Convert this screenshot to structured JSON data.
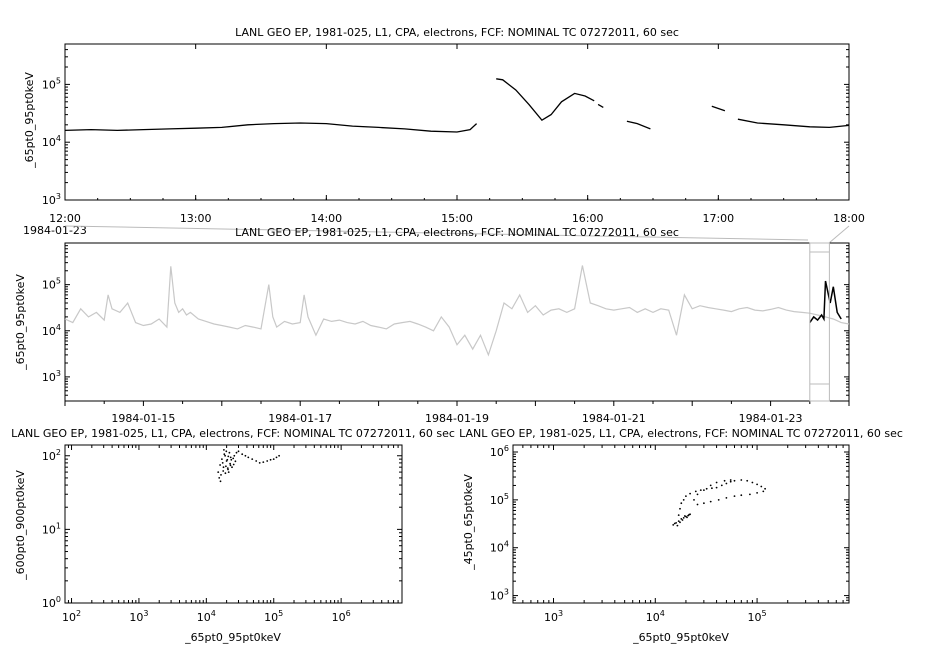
{
  "chart_data": [
    {
      "id": "top",
      "type": "line",
      "title": "LANL GEO EP, 1981-025, L1, CPA, electrons, FCF: NOMINAL TC 07272011, 60 sec",
      "xlabel": "",
      "ylabel": "_65pt0_95pt0keV",
      "yscale": "log",
      "ylim": [
        1000,
        500000
      ],
      "xlim": [
        "12:00",
        "18:00"
      ],
      "xticks": [
        "12:00",
        "13:00",
        "14:00",
        "15:00",
        "16:00",
        "17:00",
        "18:00"
      ],
      "yticks": [
        {
          "exp": 3
        },
        {
          "exp": 4
        },
        {
          "exp": 5
        }
      ],
      "extra_label": "1984-01-23",
      "series": [
        {
          "color": "#000000",
          "hours": [
            12.0,
            12.2,
            12.4,
            12.6,
            12.8,
            13.0,
            13.2,
            13.4,
            13.6,
            13.8,
            14.0,
            14.2,
            14.4,
            14.6,
            14.8,
            15.0,
            15.1,
            15.15
          ],
          "values": [
            16000,
            16500,
            16000,
            16500,
            17000,
            17500,
            18000,
            20000,
            21000,
            21500,
            21000,
            19000,
            18000,
            17000,
            15500,
            15000,
            16500,
            21000
          ]
        },
        {
          "color": "#000000",
          "hours": [
            15.3,
            15.35,
            15.45,
            15.55,
            15.65,
            15.72,
            15.8,
            15.9,
            15.98,
            16.05
          ],
          "values": [
            125000,
            120000,
            80000,
            45000,
            24000,
            30000,
            50000,
            70000,
            63000,
            52000
          ]
        },
        {
          "color": "#000000",
          "hours": [
            16.08,
            16.12
          ],
          "values": [
            45000,
            40000
          ]
        },
        {
          "color": "#000000",
          "hours": [
            16.3,
            16.38,
            16.48
          ],
          "values": [
            23000,
            21000,
            17000
          ]
        },
        {
          "color": "#000000",
          "hours": [
            16.95,
            17.05
          ],
          "values": [
            42000,
            35000
          ]
        },
        {
          "color": "#000000",
          "hours": [
            17.15,
            17.3,
            17.5,
            17.7,
            17.85,
            18.0
          ],
          "values": [
            25000,
            21500,
            20000,
            18500,
            18000,
            19500
          ]
        }
      ]
    },
    {
      "id": "middle",
      "type": "line",
      "title": "LANL GEO EP, 1981-025, L1, CPA, electrons, FCF: NOMINAL TC 07272011, 60 sec",
      "xlabel": "",
      "ylabel": "_65pt0_95pt0keV",
      "yscale": "log",
      "ylim": [
        300,
        800000
      ],
      "xlim_days": [
        14.0,
        24.0
      ],
      "xticks": [
        {
          "day": 15,
          "label": "1984-01-15"
        },
        {
          "day": 17,
          "label": "1984-01-17"
        },
        {
          "day": 19,
          "label": "1984-01-19"
        },
        {
          "day": 21,
          "label": "1984-01-21"
        },
        {
          "day": 23,
          "label": "1984-01-23"
        }
      ],
      "yticks": [
        {
          "exp": 3
        },
        {
          "exp": 4
        },
        {
          "exp": 5
        }
      ],
      "series": [
        {
          "color": "#c8c8c8",
          "days": [
            14.0,
            14.1,
            14.2,
            14.3,
            14.4,
            14.5,
            14.55,
            14.6,
            14.7,
            14.8,
            14.9,
            15.0,
            15.1,
            15.2,
            15.3,
            15.35,
            15.4,
            15.45,
            15.5,
            15.55,
            15.6,
            15.7,
            15.8,
            15.9,
            16.0,
            16.1,
            16.2,
            16.3,
            16.4,
            16.5,
            16.6,
            16.65,
            16.7,
            16.8,
            16.9,
            17.0,
            17.05,
            17.1,
            17.2,
            17.3,
            17.4,
            17.5,
            17.6,
            17.7,
            17.8,
            17.9,
            18.0,
            18.1,
            18.2,
            18.3,
            18.4,
            18.5,
            18.6,
            18.7,
            18.8,
            18.9,
            19.0,
            19.1,
            19.2,
            19.3,
            19.4,
            19.5,
            19.6,
            19.7,
            19.8,
            19.9,
            20.0,
            20.1,
            20.2,
            20.3,
            20.4,
            20.5,
            20.6,
            20.7,
            20.8,
            20.9,
            21.0,
            21.1,
            21.2,
            21.3,
            21.4,
            21.5,
            21.6,
            21.7,
            21.8,
            21.9,
            22.0,
            22.1,
            22.2,
            22.3,
            22.4,
            22.5,
            22.6,
            22.7,
            22.8,
            22.9,
            23.0,
            23.1,
            23.2,
            23.3,
            23.4,
            23.5,
            23.6,
            23.7,
            23.8,
            23.9,
            24.0
          ],
          "values": [
            18000,
            15000,
            30000,
            20000,
            25000,
            17000,
            60000,
            30000,
            25000,
            40000,
            15000,
            13000,
            14000,
            18000,
            12000,
            250000,
            40000,
            25000,
            30000,
            22000,
            25000,
            18000,
            16000,
            14000,
            13000,
            12000,
            11000,
            13000,
            12000,
            11000,
            100000,
            20000,
            12000,
            16000,
            14000,
            15000,
            60000,
            20000,
            8000,
            18000,
            16000,
            17000,
            15000,
            14000,
            16000,
            13000,
            12000,
            11000,
            14000,
            15000,
            16000,
            14000,
            12000,
            10000,
            20000,
            12000,
            5000,
            8000,
            4000,
            8000,
            3000,
            10000,
            40000,
            30000,
            60000,
            25000,
            35000,
            22000,
            28000,
            30000,
            25000,
            30000,
            260000,
            40000,
            35000,
            30000,
            28000,
            30000,
            32000,
            25000,
            30000,
            25000,
            30000,
            28000,
            8000,
            60000,
            30000,
            35000,
            32000,
            30000,
            28000,
            26000,
            30000,
            32000,
            28000,
            27000,
            29000,
            32000,
            28000,
            26000,
            25000,
            24000,
            22000,
            20000,
            18000,
            15000,
            14000
          ]
        },
        {
          "color": "#000000",
          "days": [
            23.5,
            23.55,
            23.6,
            23.65,
            23.68,
            23.7,
            23.73,
            23.76,
            23.8,
            23.85,
            23.9
          ],
          "values": [
            15000,
            20000,
            17000,
            22000,
            18000,
            120000,
            70000,
            40000,
            90000,
            25000,
            18000
          ]
        }
      ],
      "zoom_window_days": [
        23.5,
        23.75
      ]
    },
    {
      "id": "bottom-left",
      "type": "scatter",
      "title": "LANL GEO EP, 1981-025, L1, CPA, electrons, FCF: NOMINAL TC 07272011, 60 sec",
      "xlabel": "_65pt0_95pt0keV",
      "ylabel": "_600pt0_900pt0keV",
      "xscale": "log",
      "yscale": "log",
      "xlim": [
        80,
        8000000
      ],
      "ylim": [
        1,
        140
      ],
      "xticks": [
        {
          "exp": 2
        },
        {
          "exp": 3
        },
        {
          "exp": 4
        },
        {
          "exp": 5
        },
        {
          "exp": 6
        }
      ],
      "yticks": [
        {
          "exp": 0
        },
        {
          "exp": 1
        },
        {
          "exp": 2
        }
      ],
      "points": [
        [
          15000,
          60
        ],
        [
          16000,
          75
        ],
        [
          17000,
          90
        ],
        [
          18000,
          70
        ],
        [
          19000,
          100
        ],
        [
          20000,
          85
        ],
        [
          21000,
          65
        ],
        [
          22000,
          110
        ],
        [
          23000,
          95
        ],
        [
          16500,
          55
        ],
        [
          17500,
          80
        ],
        [
          18500,
          105
        ],
        [
          19500,
          72
        ],
        [
          20500,
          88
        ],
        [
          21500,
          60
        ],
        [
          22500,
          78
        ],
        [
          24000,
          70
        ],
        [
          25000,
          92
        ],
        [
          26000,
          100
        ],
        [
          28000,
          110
        ],
        [
          30000,
          115
        ],
        [
          34000,
          105
        ],
        [
          38000,
          100
        ],
        [
          42000,
          95
        ],
        [
          48000,
          90
        ],
        [
          55000,
          85
        ],
        [
          62000,
          80
        ],
        [
          70000,
          82
        ],
        [
          80000,
          85
        ],
        [
          90000,
          88
        ],
        [
          100000,
          90
        ],
        [
          110000,
          95
        ],
        [
          120000,
          100
        ],
        [
          15500,
          50
        ],
        [
          16200,
          45
        ],
        [
          17800,
          62
        ],
        [
          19200,
          58
        ],
        [
          20800,
          68
        ],
        [
          22800,
          74
        ],
        [
          18200,
          120
        ],
        [
          19800,
          115
        ],
        [
          21200,
          98
        ],
        [
          23500,
          88
        ],
        [
          25500,
          76
        ],
        [
          27000,
          84
        ]
      ]
    },
    {
      "id": "bottom-right",
      "type": "scatter",
      "title": "LANL GEO EP, 1981-025, L1, CPA, electrons, FCF: NOMINAL TC 07272011, 60 sec",
      "xlabel": "_65pt0_95pt0keV",
      "ylabel": "_45pt0_65pt0keV",
      "xscale": "log",
      "yscale": "log",
      "xlim": [
        400,
        800000
      ],
      "ylim": [
        700,
        1400000
      ],
      "xticks": [
        {
          "exp": 3
        },
        {
          "exp": 4
        },
        {
          "exp": 5
        }
      ],
      "yticks": [
        {
          "exp": 3
        },
        {
          "exp": 4
        },
        {
          "exp": 5
        },
        {
          "exp": 6
        }
      ],
      "points": [
        [
          15000,
          30000
        ],
        [
          15500,
          32000
        ],
        [
          16000,
          33000
        ],
        [
          17000,
          36000
        ],
        [
          18000,
          40000
        ],
        [
          19000,
          42000
        ],
        [
          20000,
          45000
        ],
        [
          21000,
          47000
        ],
        [
          22000,
          50000
        ],
        [
          16500,
          29000
        ],
        [
          17500,
          34000
        ],
        [
          18500,
          38000
        ],
        [
          19500,
          46000
        ],
        [
          20500,
          43000
        ],
        [
          21500,
          49000
        ],
        [
          17000,
          48000
        ],
        [
          17500,
          65000
        ],
        [
          18000,
          85000
        ],
        [
          19000,
          100000
        ],
        [
          20000,
          120000
        ],
        [
          22000,
          135000
        ],
        [
          25000,
          150000
        ],
        [
          28000,
          160000
        ],
        [
          32000,
          170000
        ],
        [
          36000,
          175000
        ],
        [
          40000,
          180000
        ],
        [
          45000,
          200000
        ],
        [
          50000,
          220000
        ],
        [
          55000,
          240000
        ],
        [
          60000,
          250000
        ],
        [
          70000,
          260000
        ],
        [
          80000,
          250000
        ],
        [
          90000,
          230000
        ],
        [
          100000,
          210000
        ],
        [
          110000,
          190000
        ],
        [
          120000,
          170000
        ],
        [
          115000,
          150000
        ],
        [
          100000,
          140000
        ],
        [
          85000,
          130000
        ],
        [
          70000,
          125000
        ],
        [
          60000,
          120000
        ],
        [
          50000,
          110000
        ],
        [
          42000,
          100000
        ],
        [
          35000,
          92000
        ],
        [
          30000,
          85000
        ],
        [
          26000,
          80000
        ],
        [
          24000,
          100000
        ],
        [
          26000,
          130000
        ],
        [
          30000,
          160000
        ],
        [
          35000,
          200000
        ],
        [
          40000,
          230000
        ],
        [
          48000,
          250000
        ],
        [
          55000,
          260000
        ]
      ]
    }
  ]
}
